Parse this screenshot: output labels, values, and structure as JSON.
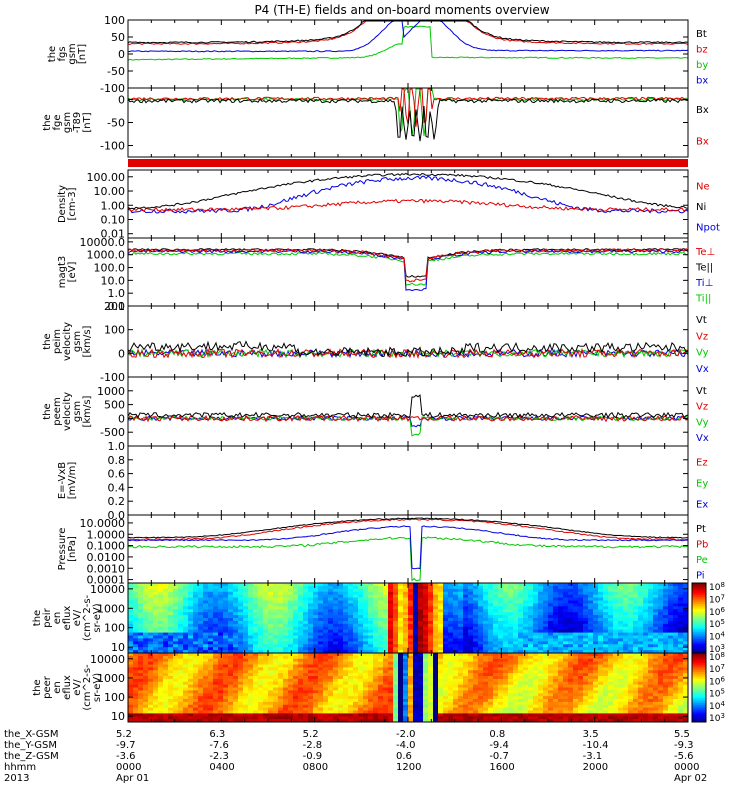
{
  "title": "P4 (TH-E) fields and on-board moments overview",
  "colors": {
    "black": "#000000",
    "red": "#e00000",
    "green": "#00c800",
    "blue": "#0000e0"
  },
  "chart_data": [
    {
      "type": "line",
      "id": "fgs",
      "ylabel": [
        "the",
        "fgs",
        "gsm",
        "[nT]"
      ],
      "ylim": [
        -100,
        100
      ],
      "ticks": [
        "100",
        "50",
        "0",
        "-50",
        "-100"
      ],
      "series": [
        {
          "name": "Bt",
          "color": "black"
        },
        {
          "name": "bz",
          "color": "red"
        },
        {
          "name": "by",
          "color": "green"
        },
        {
          "name": "bx",
          "color": "blue"
        }
      ]
    },
    {
      "type": "line",
      "id": "fge",
      "ylabel": [
        "the",
        "fge",
        "gsm",
        "-T89",
        "[nT]"
      ],
      "ylim": [
        -125,
        25
      ],
      "ticks": [
        "0",
        "-50",
        "-100"
      ],
      "series": [
        {
          "name": "Bx",
          "color": "black"
        },
        {
          "name": "Bx",
          "color": "red"
        }
      ]
    },
    {
      "type": "line",
      "id": "density",
      "ylabel": [
        "Density",
        "[cm-3]"
      ],
      "scale": "log",
      "ylim": [
        0.005,
        300
      ],
      "ticks": [
        "100.00",
        "10.00",
        "1.00",
        "0.10",
        "0.01"
      ],
      "series": [
        {
          "name": "Ne",
          "color": "red"
        },
        {
          "name": "Ni",
          "color": "black"
        },
        {
          "name": "Npot",
          "color": "blue"
        }
      ]
    },
    {
      "type": "line",
      "id": "temperature",
      "ylabel": [
        "magt3",
        "[eV]"
      ],
      "scale": "log",
      "ylim": [
        0.1,
        20000
      ],
      "ticks": [
        "10000.0",
        "1000.0",
        "100.0",
        "10.0",
        "1.0",
        "0.1"
      ],
      "series": [
        {
          "name": "Te⊥",
          "color": "red"
        },
        {
          "name": "Te||",
          "color": "black"
        },
        {
          "name": "Ti⊥",
          "color": "blue"
        },
        {
          "name": "Ti||",
          "color": "green"
        }
      ]
    },
    {
      "type": "line",
      "id": "peim-velocity",
      "ylabel": [
        "the",
        "peim",
        "velocity",
        "gsm",
        "[km/s]"
      ],
      "ylim": [
        -100,
        200
      ],
      "ticks": [
        "200",
        "100",
        "0",
        "-100"
      ],
      "series": [
        {
          "name": "Vt",
          "color": "black"
        },
        {
          "name": "Vz",
          "color": "red"
        },
        {
          "name": "Vy",
          "color": "green"
        },
        {
          "name": "Vx",
          "color": "blue"
        }
      ]
    },
    {
      "type": "line",
      "id": "peem-velocity",
      "ylabel": [
        "the",
        "peem",
        "velocity",
        "gsm",
        "[km/s]"
      ],
      "ylim": [
        -1000,
        1500
      ],
      "ticks": [
        "1000",
        "500",
        "0",
        "-500"
      ],
      "series": [
        {
          "name": "Vt",
          "color": "black"
        },
        {
          "name": "Vz",
          "color": "red"
        },
        {
          "name": "Vy",
          "color": "green"
        },
        {
          "name": "Vx",
          "color": "blue"
        }
      ]
    },
    {
      "type": "line",
      "id": "efield",
      "ylabel": [
        "E=-VxB",
        "[mV/m]"
      ],
      "ylim": [
        0,
        1
      ],
      "ticks": [
        "1.0",
        "0.8",
        "0.6",
        "0.4",
        "0.2",
        "0.0"
      ],
      "series": [
        {
          "name": "Ez",
          "color": "red"
        },
        {
          "name": "Ey",
          "color": "green"
        },
        {
          "name": "Ex",
          "color": "blue"
        }
      ]
    },
    {
      "type": "line",
      "id": "pressure",
      "ylabel": [
        "Pressure",
        "[nPa]"
      ],
      "scale": "log",
      "ylim": [
        5e-05,
        50
      ],
      "ticks": [
        "10.0000",
        "1.0000",
        "0.1000",
        "0.0100",
        "0.0010",
        "0.0001"
      ],
      "series": [
        {
          "name": "Pt",
          "color": "black"
        },
        {
          "name": "Pb",
          "color": "red"
        },
        {
          "name": "Pe",
          "color": "green"
        },
        {
          "name": "Pi",
          "color": "blue"
        }
      ]
    },
    {
      "type": "heatmap",
      "id": "peir-spectrogram",
      "ylabel": [
        "the",
        "peir",
        "en",
        "eflux",
        "eV/",
        "(cm^2-s-",
        "sr-eV)"
      ],
      "scale": "log",
      "ylim": [
        5,
        20000
      ],
      "ticks": [
        "10000",
        "1000",
        "100",
        "10"
      ],
      "colorbar": {
        "min_exp": 3,
        "max_exp": 8,
        "labels": [
          "10^8",
          "10^7",
          "10^6",
          "10^5",
          "10^4",
          "10^3"
        ]
      }
    },
    {
      "type": "heatmap",
      "id": "peer-spectrogram",
      "ylabel": [
        "the",
        "peer",
        "en",
        "eflux",
        "eV/",
        "(cm^2-s-",
        "sr-eV)"
      ],
      "scale": "log",
      "ylim": [
        5,
        20000
      ],
      "ticks": [
        "10000",
        "1000",
        "100",
        "10"
      ],
      "colorbar": {
        "min_exp": 3,
        "max_exp": 8,
        "labels": [
          "10^8",
          "10^7",
          "10^6",
          "10^5",
          "10^4",
          "10^3"
        ]
      }
    }
  ],
  "ephemeris": {
    "row_labels": [
      "the_X-GSM",
      "the_Y-GSM",
      "the_Z-GSM",
      "hhmm",
      "2013"
    ],
    "columns": [
      {
        "x": "5.2",
        "y": "-9.7",
        "z": "-3.6",
        "t": "0000",
        "d": "Apr 01"
      },
      {
        "x": "6.3",
        "y": "-7.6",
        "z": "-2.3",
        "t": "0400",
        "d": ""
      },
      {
        "x": "5.2",
        "y": "-2.8",
        "z": "-0.9",
        "t": "0800",
        "d": ""
      },
      {
        "x": "-2.0",
        "y": "-4.0",
        "z": "0.6",
        "t": "1200",
        "d": ""
      },
      {
        "x": "0.8",
        "y": "-9.4",
        "z": "-0.7",
        "t": "1600",
        "d": ""
      },
      {
        "x": "3.5",
        "y": "-10.4",
        "z": "-3.1",
        "t": "2000",
        "d": ""
      },
      {
        "x": "5.5",
        "y": "-9.3",
        "z": "-5.6",
        "t": "0000",
        "d": "Apr 02"
      }
    ]
  }
}
